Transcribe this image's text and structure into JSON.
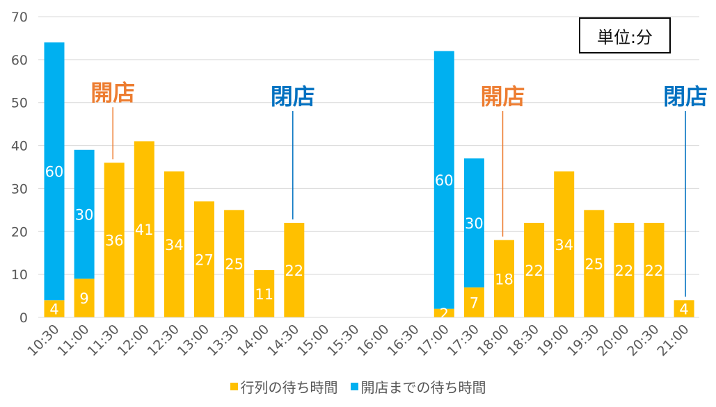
{
  "unit_label": "単位:分",
  "chart_data": {
    "type": "bar",
    "stacked": true,
    "categories": [
      "10:30",
      "11:00",
      "11:30",
      "12:00",
      "12:30",
      "13:00",
      "13:30",
      "14:00",
      "14:30",
      "15:00",
      "15:30",
      "16:00",
      "16:30",
      "17:00",
      "17:30",
      "18:00",
      "18:30",
      "19:00",
      "19:30",
      "20:00",
      "20:30",
      "21:00"
    ],
    "series": [
      {
        "name": "行列の待ち時間",
        "color": "#FFC000",
        "values": [
          4,
          9,
          36,
          41,
          34,
          27,
          25,
          11,
          22,
          0,
          0,
          0,
          0,
          2,
          7,
          18,
          22,
          34,
          25,
          22,
          22,
          4
        ]
      },
      {
        "name": "開店までの待ち時間",
        "color": "#00B0F0",
        "values": [
          60,
          30,
          0,
          0,
          0,
          0,
          0,
          0,
          0,
          0,
          0,
          0,
          0,
          60,
          30,
          0,
          0,
          0,
          0,
          0,
          0,
          0
        ]
      }
    ],
    "ylim": [
      0,
      70
    ],
    "yticks": [
      0,
      10,
      20,
      30,
      40,
      50,
      60,
      70
    ],
    "grid": true,
    "legend_position": "bottom",
    "annotations": [
      {
        "text": "開店",
        "category": "11:30",
        "color": "#ED7D31"
      },
      {
        "text": "閉店",
        "category": "14:30",
        "color": "#0070C0"
      },
      {
        "text": "開店",
        "category": "18:00",
        "color": "#ED7D31"
      },
      {
        "text": "閉店",
        "category": "21:00",
        "color": "#0070C0"
      }
    ]
  }
}
